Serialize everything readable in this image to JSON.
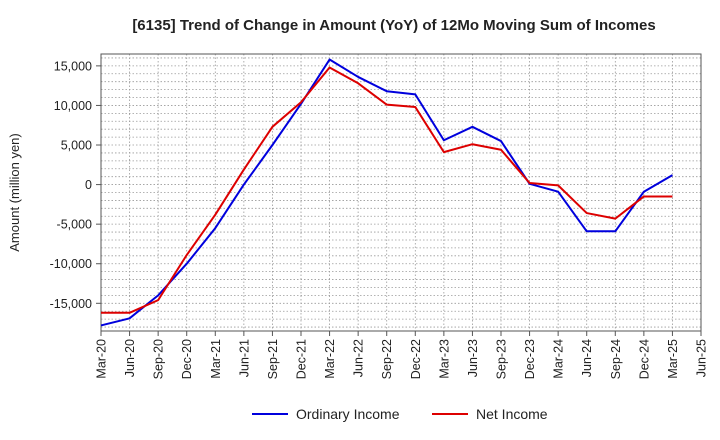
{
  "chart_data": {
    "type": "line",
    "title": "[6135]  Trend of Change in Amount (YoY) of 12Mo Moving Sum of Incomes",
    "xlabel": "",
    "ylabel": "Amount (million yen)",
    "ylim": [
      -18500,
      16500
    ],
    "yticks": [
      15000,
      10000,
      5000,
      0,
      -5000,
      -10000,
      -15000
    ],
    "ytick_labels": [
      "15,000",
      "10,000",
      "5,000",
      "0",
      "-5,000",
      "-10,000",
      "-15,000"
    ],
    "categories": [
      "Mar-20",
      "Jun-20",
      "Sep-20",
      "Dec-20",
      "Mar-21",
      "Jun-21",
      "Sep-21",
      "Dec-21",
      "Mar-22",
      "Jun-22",
      "Sep-22",
      "Dec-22",
      "Mar-23",
      "Jun-23",
      "Sep-23",
      "Dec-23",
      "Mar-24",
      "Jun-24",
      "Sep-24",
      "Dec-24",
      "Mar-25",
      "Jun-25"
    ],
    "grid": true,
    "legend_position": "bottom-center",
    "series": [
      {
        "name": "Ordinary Income",
        "color": "#0000dd",
        "values": [
          -17800,
          -16900,
          -14000,
          -10000,
          -5500,
          0,
          5000,
          10200,
          15800,
          13600,
          11800,
          11400,
          5600,
          7300,
          5500,
          100,
          -900,
          -5900,
          -5900,
          -900,
          1200,
          null
        ]
      },
      {
        "name": "Net Income",
        "color": "#dd0000",
        "values": [
          -16200,
          -16200,
          -14600,
          -8900,
          -3800,
          1900,
          7300,
          10400,
          14800,
          12800,
          10100,
          9800,
          4100,
          5100,
          4400,
          200,
          -100,
          -3600,
          -4300,
          -1500,
          -1500,
          null
        ]
      }
    ]
  }
}
